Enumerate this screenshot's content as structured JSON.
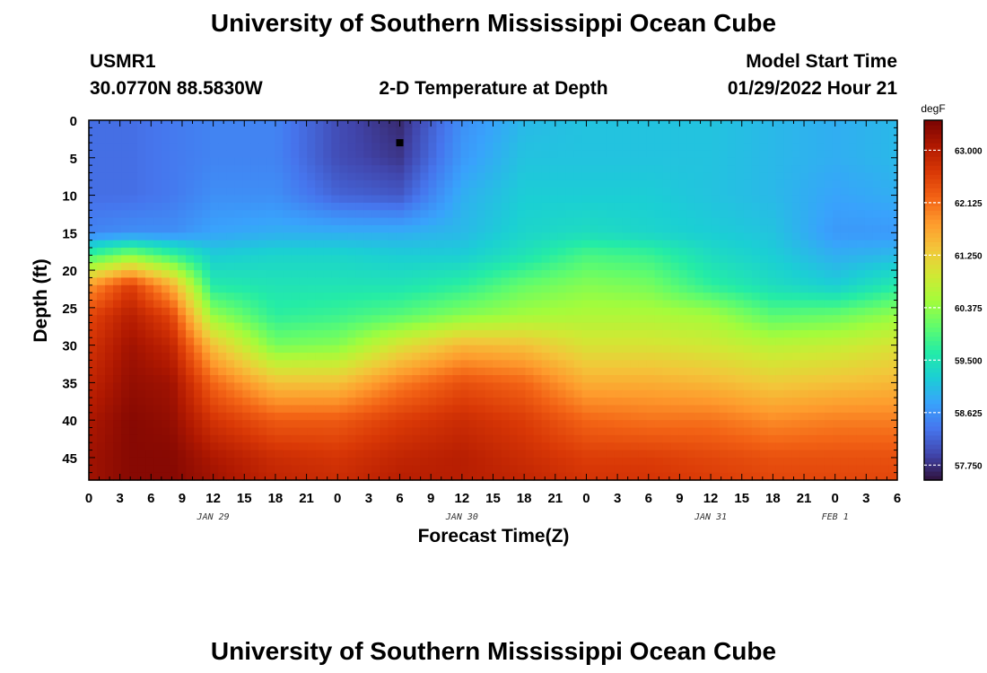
{
  "title": "University of Southern Mississippi Ocean Cube",
  "footer_title": "University of Southern Mississippi Ocean Cube",
  "station": {
    "id": "USMR1",
    "coords": "30.0770N  88.5830W"
  },
  "subtitle": "2-D Temperature at Depth",
  "model_start": {
    "label": "Model Start Time",
    "value": "01/29/2022 Hour 21"
  },
  "chart_data": {
    "type": "heatmap",
    "title": "2-D Temperature at Depth",
    "xlabel": "Forecast Time(Z)",
    "ylabel": "Depth (ft)",
    "x_range_hours": [
      0,
      78
    ],
    "y_range_ft": [
      0,
      48
    ],
    "y_inverted": true,
    "x_tick_labels": [
      "0",
      "3",
      "6",
      "9",
      "12",
      "15",
      "18",
      "21",
      "0",
      "3",
      "6",
      "9",
      "12",
      "15",
      "18",
      "21",
      "0",
      "3",
      "6",
      "9",
      "12",
      "15",
      "18",
      "21",
      "0",
      "3",
      "6"
    ],
    "y_tick_labels": [
      "0",
      "5",
      "10",
      "15",
      "20",
      "25",
      "30",
      "35",
      "40",
      "45"
    ],
    "date_labels": [
      {
        "text": "JAN 29",
        "hour": 12
      },
      {
        "text": "JAN 30",
        "hour": 36
      },
      {
        "text": "JAN 31",
        "hour": 60
      },
      {
        "text": "FEB 1",
        "hour": 72
      }
    ],
    "colorbar": {
      "unit": "degF",
      "min": 57.5,
      "max": 63.5,
      "ticks": [
        "57.750",
        "58.625",
        "59.500",
        "60.375",
        "61.250",
        "62.125",
        "63.000"
      ],
      "colors": [
        "#30123b",
        "#4145ab",
        "#4675ed",
        "#39a2fc",
        "#1bcfd4",
        "#24eca6",
        "#61fc6c",
        "#a4fc3b",
        "#d1e834",
        "#f3c63a",
        "#fe9b2d",
        "#f36315",
        "#d93806",
        "#b11901",
        "#7a0403"
      ]
    },
    "profile_times_hours": [
      0,
      4,
      8,
      12,
      18,
      24,
      30,
      36,
      42,
      48,
      54,
      60,
      66,
      72,
      78
    ],
    "profile_depths_ft": [
      0,
      5,
      10,
      15,
      18,
      22,
      26,
      30,
      35,
      40,
      45,
      48
    ],
    "temperature_degF": [
      [
        58.3,
        58.3,
        58.3,
        58.5,
        59.8,
        61.8,
        62.5,
        62.7,
        62.9,
        63.1,
        63.2,
        63.2
      ],
      [
        58.3,
        58.3,
        58.3,
        58.6,
        60.3,
        62.6,
        63.0,
        63.2,
        63.3,
        63.4,
        63.4,
        63.4
      ],
      [
        58.4,
        58.4,
        58.4,
        58.6,
        59.8,
        61.6,
        62.5,
        62.9,
        63.2,
        63.3,
        63.4,
        63.4
      ],
      [
        58.5,
        58.5,
        58.6,
        58.8,
        59.2,
        59.6,
        60.4,
        61.4,
        62.2,
        62.7,
        63.1,
        63.2
      ],
      [
        58.5,
        58.5,
        58.6,
        58.9,
        59.3,
        59.5,
        59.7,
        60.2,
        61.4,
        62.3,
        62.8,
        62.9
      ],
      [
        58.0,
        58.0,
        58.2,
        58.9,
        59.3,
        59.5,
        59.8,
        60.3,
        61.4,
        62.3,
        62.7,
        62.8
      ],
      [
        57.7,
        57.8,
        58.1,
        58.9,
        59.2,
        59.5,
        60.0,
        61.0,
        62.0,
        62.6,
        62.9,
        63.0
      ],
      [
        58.6,
        58.7,
        58.9,
        59.0,
        59.2,
        59.7,
        60.3,
        61.5,
        62.4,
        62.8,
        63.0,
        63.0
      ],
      [
        59.0,
        59.1,
        59.2,
        59.3,
        59.5,
        60.1,
        60.5,
        61.4,
        62.2,
        62.6,
        62.8,
        62.9
      ],
      [
        59.1,
        59.1,
        59.2,
        59.4,
        59.9,
        60.3,
        60.6,
        61.0,
        61.6,
        62.2,
        62.6,
        62.7
      ],
      [
        59.1,
        59.1,
        59.2,
        59.3,
        59.8,
        60.2,
        60.6,
        61.0,
        61.6,
        62.1,
        62.6,
        62.7
      ],
      [
        59.1,
        59.1,
        59.1,
        59.2,
        59.4,
        59.7,
        60.5,
        60.9,
        61.5,
        62.1,
        62.5,
        62.6
      ],
      [
        59.0,
        59.0,
        59.0,
        59.1,
        59.2,
        59.4,
        60.0,
        60.7,
        61.3,
        61.9,
        62.4,
        62.5
      ],
      [
        58.9,
        58.9,
        58.8,
        58.7,
        58.9,
        59.2,
        60.1,
        60.8,
        61.4,
        62.0,
        62.4,
        62.5
      ],
      [
        59.0,
        59.0,
        58.9,
        58.7,
        59.0,
        59.6,
        60.4,
        61.0,
        61.5,
        62.0,
        62.4,
        62.5
      ]
    ],
    "marker": {
      "hour": 30,
      "depth_ft": 3
    }
  }
}
